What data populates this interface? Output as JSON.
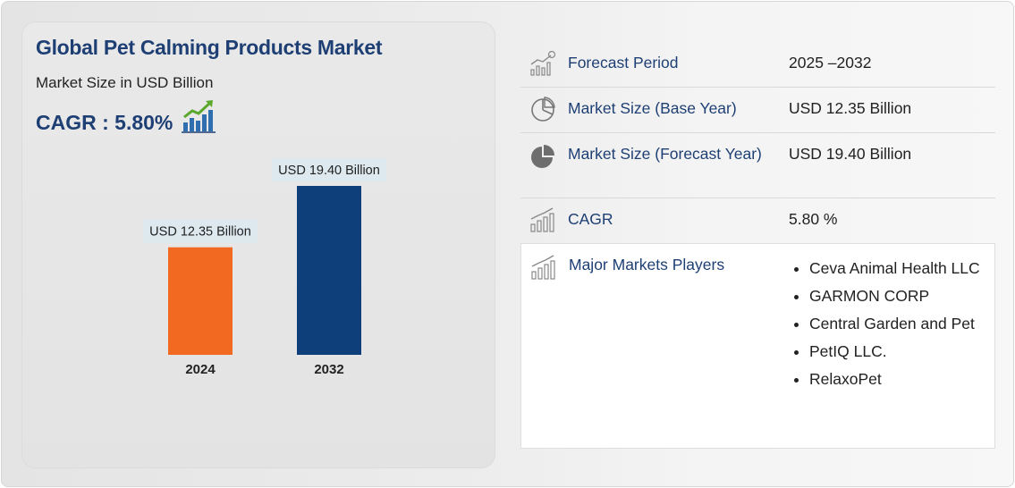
{
  "title": "Global Pet Calming Products Market",
  "subtitle": "Market Size in USD Billion",
  "cagr_text": "CAGR : 5.80%",
  "colors": {
    "accent": "#1e3f74",
    "bar_2024": "#f26a21",
    "bar_2032": "#0f3f7b",
    "label_bg": "#dde9ee"
  },
  "chart_data": {
    "type": "bar",
    "categories": [
      "2024",
      "2032"
    ],
    "values": [
      12.35,
      19.4
    ],
    "data_labels": [
      "USD 12.35 Billion",
      "USD 19.40 Billion"
    ],
    "xlabel": "",
    "ylabel": "",
    "ylim": [
      0,
      19.4
    ],
    "grid": false
  },
  "info": {
    "forecast_period": {
      "label": "Forecast Period",
      "value": "2025 –2032",
      "icon": "trend-chart-icon"
    },
    "base_year": {
      "label": "Market Size (Base Year)",
      "value": "USD 12.35 Billion",
      "icon": "pie-outline-icon"
    },
    "forecast_year": {
      "label": "Market Size (Forecast Year)",
      "value": "USD 19.40 Billion",
      "icon": "pie-filled-icon"
    },
    "cagr": {
      "label": "CAGR",
      "value": "5.80 %",
      "icon": "bar-growth-icon"
    },
    "players": {
      "label": "Major Markets Players",
      "icon": "bar-growth-icon",
      "items": [
        "Ceva Animal Health LLC",
        "GARMON CORP",
        "Central Garden and Pet",
        "PetIQ LLC.",
        "RelaxoPet"
      ]
    }
  }
}
